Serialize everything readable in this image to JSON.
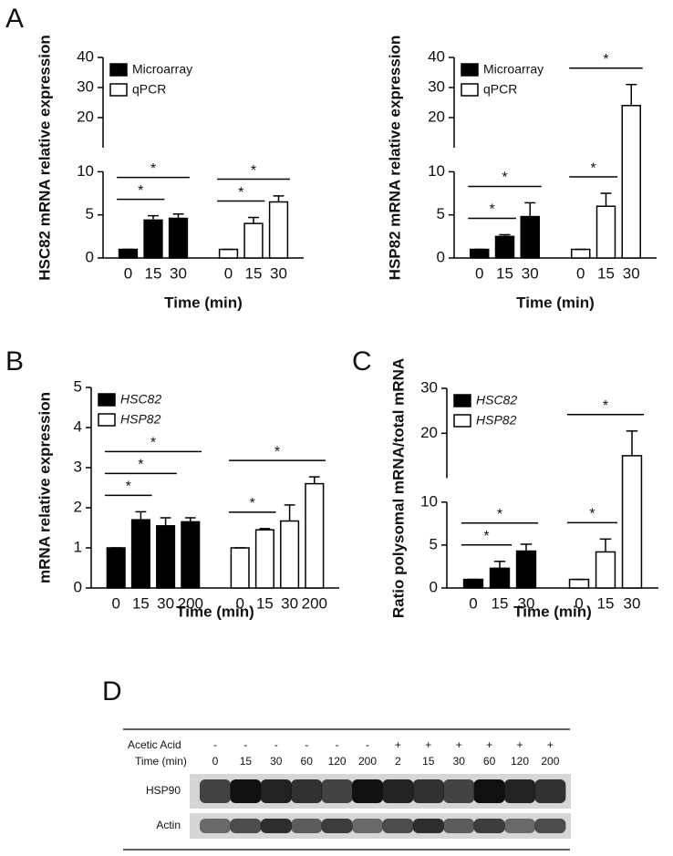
{
  "chart_data": [
    {
      "type": "bar",
      "panel": "A",
      "xlabel": "Time (min)",
      "ylabel": "HSC82 mRNA relative expression",
      "ylim": [
        0,
        40
      ],
      "ybreak": 10,
      "yticks": [
        0,
        5,
        10,
        20,
        30,
        40
      ],
      "categories": [
        "0",
        "15",
        "30"
      ],
      "legend": "upper left",
      "legend_style": "normal",
      "edgecolor": "#000000",
      "series": [
        {
          "name": "Microarray",
          "color": "#000000",
          "values": [
            1,
            4.4,
            4.6
          ],
          "errors": [
            0,
            0.5,
            0.5
          ],
          "significance": [
            {
              "from": "0",
              "to": "15",
              "label": "*"
            },
            {
              "from": "0",
              "to": "30",
              "label": "*"
            }
          ]
        },
        {
          "name": "qPCR",
          "color": "#ffffff",
          "values": [
            1,
            4,
            6.5
          ],
          "errors": [
            0,
            0.7,
            0.7
          ],
          "significance": [
            {
              "from": "0",
              "to": "15",
              "label": "*"
            },
            {
              "from": "0",
              "to": "30",
              "label": "*"
            }
          ]
        }
      ]
    },
    {
      "type": "bar",
      "xlabel": "Time (min)",
      "ylabel": "HSP82 mRNA relative expression",
      "ylim": [
        0,
        40
      ],
      "ybreak": 10,
      "yticks": [
        0,
        5,
        10,
        20,
        30,
        40
      ],
      "categories": [
        "0",
        "15",
        "30"
      ],
      "legend": "upper left",
      "legend_style": "normal",
      "edgecolor": "#000000",
      "series": [
        {
          "name": "Microarray",
          "color": "#000000",
          "values": [
            1,
            2.5,
            4.8
          ],
          "errors": [
            0,
            0.2,
            1.6
          ],
          "significance": [
            {
              "from": "0",
              "to": "15",
              "label": "*"
            },
            {
              "from": "0",
              "to": "30",
              "label": "*"
            }
          ]
        },
        {
          "name": "qPCR",
          "color": "#ffffff",
          "values": [
            1,
            6,
            24
          ],
          "errors": [
            0,
            1.5,
            7
          ],
          "significance": [
            {
              "from": "0",
              "to": "15",
              "label": "*"
            },
            {
              "from": "0",
              "to": "30",
              "label": "*"
            }
          ]
        }
      ]
    },
    {
      "type": "bar",
      "panel": "B",
      "xlabel": "Time (min)",
      "ylabel": "mRNA relative expression",
      "ylim": [
        0,
        5
      ],
      "yticks": [
        0,
        1,
        2,
        3,
        4,
        5
      ],
      "categories": [
        "0",
        "15",
        "30",
        "200"
      ],
      "legend": "upper left",
      "legend_style": "italic",
      "edgecolor": "#000000",
      "series": [
        {
          "name": "HSC82",
          "color": "#000000",
          "values": [
            1,
            1.7,
            1.55,
            1.65
          ],
          "errors": [
            0,
            0.2,
            0.2,
            0.1
          ],
          "significance": [
            {
              "from": "0",
              "to": "15",
              "label": "*"
            },
            {
              "from": "0",
              "to": "30",
              "label": "*"
            },
            {
              "from": "0",
              "to": "200",
              "label": "*"
            }
          ]
        },
        {
          "name": "HSP82",
          "color": "#ffffff",
          "values": [
            1,
            1.45,
            1.67,
            2.6
          ],
          "errors": [
            0,
            0.03,
            0.4,
            0.17
          ],
          "significance": [
            {
              "from": "0",
              "to": "15",
              "label": "*"
            },
            {
              "from": "0",
              "to": "200",
              "label": "*"
            }
          ]
        }
      ]
    },
    {
      "type": "bar",
      "panel": "C",
      "xlabel": "Time (min)",
      "ylabel": "Ratio polysomal mRNA/total mRNA",
      "ylim": [
        0,
        30
      ],
      "ybreak": 10,
      "yticks": [
        0,
        5,
        10,
        20,
        30
      ],
      "categories": [
        "0",
        "15",
        "30"
      ],
      "legend": "upper left",
      "legend_style": "italic",
      "edgecolor": "#000000",
      "series": [
        {
          "name": "HSC82",
          "color": "#000000",
          "values": [
            1,
            2.3,
            4.3
          ],
          "errors": [
            0,
            0.8,
            0.8
          ],
          "significance": [
            {
              "from": "0",
              "to": "15",
              "label": "*"
            },
            {
              "from": "0",
              "to": "30",
              "label": "*"
            }
          ]
        },
        {
          "name": "HSP82",
          "color": "#ffffff",
          "values": [
            1,
            4.2,
            15
          ],
          "errors": [
            0,
            1.5,
            5.5
          ],
          "significance": [
            {
              "from": "0",
              "to": "15",
              "label": "*"
            },
            {
              "from": "0",
              "to": "30",
              "label": "*"
            }
          ]
        }
      ]
    }
  ],
  "blot": {
    "panel": "D",
    "rows": [
      {
        "label": "Acetic Acid",
        "values": [
          "-",
          "-",
          "-",
          "-",
          "-",
          "-",
          "+",
          "+",
          "+",
          "+",
          "+",
          "+"
        ]
      },
      {
        "label": "Time (min)",
        "values": [
          "0",
          "15",
          "30",
          "60",
          "120",
          "200",
          "2",
          "15",
          "30",
          "60",
          "120",
          "200"
        ]
      }
    ],
    "bands": [
      "HSP90",
      "Actin"
    ]
  }
}
